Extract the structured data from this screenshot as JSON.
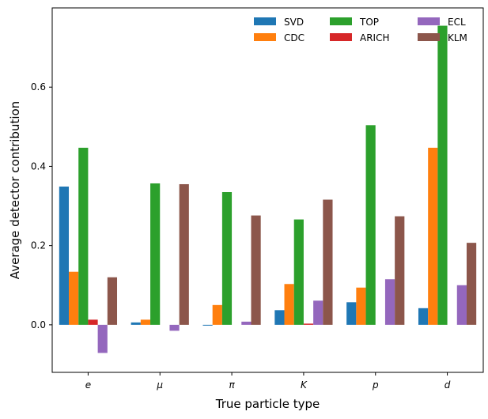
{
  "chart_data": {
    "type": "bar",
    "xlabel": "True particle type",
    "ylabel": "Average detector contribution",
    "categories": [
      "e",
      "μ",
      "π",
      "K",
      "p",
      "d"
    ],
    "ylim": [
      -0.12,
      0.8
    ],
    "yticks": [
      0.0,
      0.2,
      0.4,
      0.6
    ],
    "ytick_labels": [
      "0.0",
      "0.2",
      "0.4",
      "0.6"
    ],
    "grid": false,
    "legend": {
      "placement": "top-right",
      "columns": 3
    },
    "series": [
      {
        "name": "SVD",
        "color": "#1f77b4",
        "values": [
          0.349,
          0.006,
          -0.002,
          0.037,
          0.057,
          0.042
        ]
      },
      {
        "name": "CDC",
        "color": "#ff7f0e",
        "values": [
          0.134,
          0.013,
          0.05,
          0.103,
          0.094,
          0.447
        ]
      },
      {
        "name": "TOP",
        "color": "#2ca02c",
        "values": [
          0.447,
          0.357,
          0.335,
          0.266,
          0.504,
          0.755
        ]
      },
      {
        "name": "ARICH",
        "color": "#d62728",
        "values": [
          0.013,
          0.0,
          0.0,
          0.003,
          0.0,
          0.0
        ]
      },
      {
        "name": "ECL",
        "color": "#9467bd",
        "values": [
          -0.071,
          -0.015,
          0.008,
          0.061,
          0.115,
          0.1
        ]
      },
      {
        "name": "KLM",
        "color": "#8c564b",
        "values": [
          0.12,
          0.355,
          0.276,
          0.316,
          0.274,
          0.207
        ]
      }
    ]
  }
}
